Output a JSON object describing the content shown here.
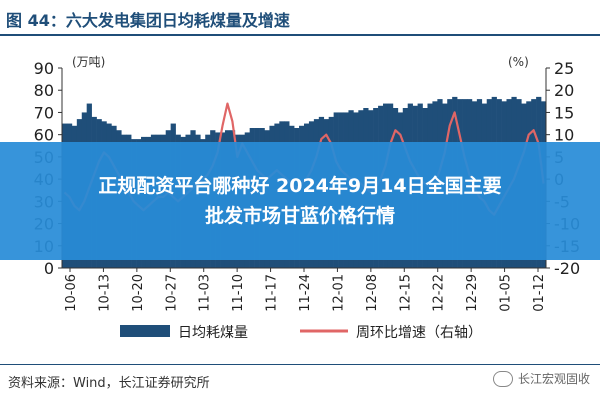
{
  "header": {
    "title": "图 44：六大发电集团日均耗煤量及增速"
  },
  "overlay": {
    "line1": "正规配资平台哪种好 2024年9月14日全国主要",
    "line2": "批发市场甘蓝价格行情"
  },
  "footer": {
    "source": "资料来源：Wind，长江证券研究所",
    "watermark": "长江宏观固收"
  },
  "colors": {
    "bar": "#1f4e79",
    "line": "#e06666",
    "title": "#1f4e79",
    "overlay": "#288cd7"
  },
  "chart_data": {
    "type": "bar+line",
    "left_axis_unit": "(万吨)",
    "right_axis_unit": "(%)",
    "ylim_left": [
      0,
      90
    ],
    "ylim_right": [
      -20,
      25
    ],
    "left_ticks": [
      "0",
      "10",
      "20",
      "30",
      "40",
      "50",
      "60",
      "70",
      "80",
      "90"
    ],
    "right_ticks": [
      "-20",
      "-15",
      "-10",
      "-5",
      "0",
      "5",
      "10",
      "15",
      "20",
      "25"
    ],
    "x_tick_labels": [
      "10-06",
      "10-13",
      "10-20",
      "10-27",
      "11-03",
      "11-10",
      "11-17",
      "11-24",
      "12-01",
      "12-08",
      "12-15",
      "12-22",
      "12-29",
      "01-05",
      "01-12"
    ],
    "legend": [
      {
        "name": "日均耗煤量",
        "kind": "bar"
      },
      {
        "name": "周环比增速（右轴）",
        "kind": "line"
      }
    ],
    "series": [
      {
        "name": "日均耗煤量",
        "axis": "left",
        "values": [
          65,
          65,
          64,
          67,
          70,
          74,
          68,
          67,
          66,
          65,
          64,
          62,
          60,
          60,
          58,
          58,
          59,
          59,
          60,
          60,
          60,
          62,
          65,
          60,
          59,
          60,
          62,
          60,
          58,
          60,
          62,
          61,
          61,
          62,
          62,
          60,
          60,
          61,
          63,
          63,
          63,
          62,
          64,
          65,
          66,
          66,
          64,
          63,
          64,
          65,
          66,
          67,
          68,
          67,
          68,
          70,
          70,
          70,
          71,
          70,
          71,
          72,
          71,
          72,
          73,
          74,
          74,
          72,
          70,
          72,
          74,
          73,
          74,
          72,
          74,
          75,
          76,
          74,
          76,
          77,
          76,
          76,
          76,
          75,
          76,
          74,
          76,
          77,
          76,
          75,
          76,
          77,
          76,
          74,
          75,
          76,
          77,
          75
        ]
      },
      {
        "name": "周环比增速（右轴）",
        "axis": "right",
        "values": [
          -3,
          -4,
          -6,
          -7,
          -5,
          -2,
          1,
          4,
          6,
          5,
          3,
          1,
          -1,
          -3,
          -5,
          -6,
          -7,
          -6,
          -5,
          -4,
          -4,
          -3,
          -4,
          -5,
          -4,
          -3,
          -2,
          -1,
          0,
          1,
          3,
          6,
          12,
          17,
          13,
          5,
          8,
          6,
          4,
          2,
          1,
          0,
          1,
          2,
          1,
          0,
          -1,
          -2,
          -1,
          0,
          2,
          5,
          9,
          10,
          8,
          4,
          2,
          1,
          0,
          0,
          -1,
          -2,
          -3,
          -2,
          0,
          3,
          8,
          11,
          10,
          7,
          4,
          2,
          0,
          -1,
          -2,
          -1,
          2,
          6,
          12,
          15,
          10,
          5,
          1,
          -2,
          -4,
          -5,
          -7,
          -8,
          -6,
          -4,
          -2,
          0,
          3,
          6,
          10,
          11,
          8,
          -1
        ]
      }
    ]
  }
}
